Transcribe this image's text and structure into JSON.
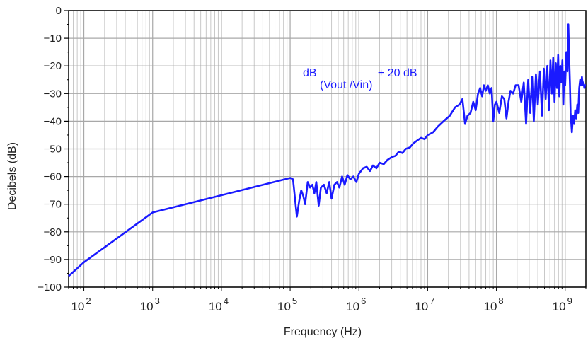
{
  "chart_data": {
    "type": "line",
    "xlabel": "Frequency (Hz)",
    "ylabel": "Decibels (dB)",
    "x_scale": "log",
    "xlim": [
      60,
      2000000000
    ],
    "ylim": [
      -100,
      0
    ],
    "grid": true,
    "x_ticks": [
      {
        "value": 100,
        "base": "10",
        "exp": "2"
      },
      {
        "value": 1000,
        "base": "10",
        "exp": "3"
      },
      {
        "value": 10000,
        "base": "10",
        "exp": "4"
      },
      {
        "value": 100000,
        "base": "10",
        "exp": "5"
      },
      {
        "value": 1000000,
        "base": "10",
        "exp": "6"
      },
      {
        "value": 10000000,
        "base": "10",
        "exp": "7"
      },
      {
        "value": 100000000,
        "base": "10",
        "exp": "8"
      },
      {
        "value": 1000000000,
        "base": "10",
        "exp": "9"
      }
    ],
    "y_ticks": [
      {
        "value": 0,
        "label": "0"
      },
      {
        "value": -10,
        "label": "−10"
      },
      {
        "value": -20,
        "label": "−20"
      },
      {
        "value": -30,
        "label": "−30"
      },
      {
        "value": -40,
        "label": "−40"
      },
      {
        "value": -50,
        "label": "−50"
      },
      {
        "value": -60,
        "label": "−60"
      },
      {
        "value": -70,
        "label": "−70"
      },
      {
        "value": -80,
        "label": "−80"
      },
      {
        "value": -90,
        "label": "−90"
      },
      {
        "value": -100,
        "label": "−100"
      }
    ],
    "annotation": {
      "main": "dB",
      "subscript": "(Vout /Vin)",
      "suffix": "+ 20 dB"
    },
    "series": [
      {
        "color": "#1a1aff",
        "points": [
          [
            60,
            -96
          ],
          [
            100,
            -91
          ],
          [
            1000,
            -73
          ],
          [
            100000,
            -60.5
          ],
          [
            110000,
            -61
          ],
          [
            125000,
            -74.5
          ],
          [
            135000,
            -69
          ],
          [
            145000,
            -65
          ],
          [
            155000,
            -67
          ],
          [
            165000,
            -70
          ],
          [
            180000,
            -62
          ],
          [
            195000,
            -64
          ],
          [
            210000,
            -63
          ],
          [
            225000,
            -66
          ],
          [
            240000,
            -62
          ],
          [
            260000,
            -70.5
          ],
          [
            280000,
            -64
          ],
          [
            310000,
            -63
          ],
          [
            340000,
            -66
          ],
          [
            370000,
            -62
          ],
          [
            400000,
            -68
          ],
          [
            440000,
            -63
          ],
          [
            480000,
            -62
          ],
          [
            520000,
            -64
          ],
          [
            570000,
            -60
          ],
          [
            620000,
            -63
          ],
          [
            680000,
            -59.5
          ],
          [
            750000,
            -61
          ],
          [
            830000,
            -60
          ],
          [
            920000,
            -62
          ],
          [
            1000000,
            -59
          ],
          [
            1150000,
            -57
          ],
          [
            1300000,
            -56.5
          ],
          [
            1450000,
            -58
          ],
          [
            1600000,
            -56
          ],
          [
            1800000,
            -57
          ],
          [
            2000000,
            -55
          ],
          [
            2300000,
            -55.5
          ],
          [
            2600000,
            -54
          ],
          [
            3000000,
            -53
          ],
          [
            3400000,
            -52.5
          ],
          [
            3800000,
            -51
          ],
          [
            4300000,
            -51.5
          ],
          [
            4800000,
            -50
          ],
          [
            5500000,
            -49.5
          ],
          [
            6200000,
            -48
          ],
          [
            7000000,
            -47
          ],
          [
            8000000,
            -46
          ],
          [
            9000000,
            -46.5
          ],
          [
            10000000,
            -45
          ],
          [
            12000000,
            -44
          ],
          [
            14000000,
            -42
          ],
          [
            17000000,
            -40
          ],
          [
            21000000,
            -38
          ],
          [
            25000000,
            -35
          ],
          [
            29000000,
            -34
          ],
          [
            32000000,
            -32
          ],
          [
            35000000,
            -41
          ],
          [
            38000000,
            -38
          ],
          [
            42000000,
            -37
          ],
          [
            46000000,
            -33
          ],
          [
            50000000,
            -36
          ],
          [
            54000000,
            -30
          ],
          [
            58000000,
            -28
          ],
          [
            62000000,
            -31
          ],
          [
            66000000,
            -27
          ],
          [
            70000000,
            -29
          ],
          [
            75000000,
            -27
          ],
          [
            80000000,
            -30
          ],
          [
            85000000,
            -28
          ],
          [
            90000000,
            -40
          ],
          [
            95000000,
            -34
          ],
          [
            100000000,
            -33
          ],
          [
            110000000,
            -37
          ],
          [
            120000000,
            -31
          ],
          [
            130000000,
            -32
          ],
          [
            140000000,
            -39
          ],
          [
            150000000,
            -33
          ],
          [
            160000000,
            -29
          ],
          [
            175000000,
            -30
          ],
          [
            190000000,
            -27
          ],
          [
            210000000,
            -27
          ],
          [
            230000000,
            -33
          ],
          [
            250000000,
            -26
          ],
          [
            270000000,
            -41
          ],
          [
            290000000,
            -25
          ],
          [
            310000000,
            -37
          ],
          [
            330000000,
            -24
          ],
          [
            350000000,
            -40
          ],
          [
            375000000,
            -23
          ],
          [
            400000000,
            -34
          ],
          [
            430000000,
            -22
          ],
          [
            460000000,
            -38
          ],
          [
            490000000,
            -21
          ],
          [
            520000000,
            -32
          ],
          [
            550000000,
            -20
          ],
          [
            580000000,
            -36
          ],
          [
            610000000,
            -18
          ],
          [
            640000000,
            -30
          ],
          [
            670000000,
            -17
          ],
          [
            700000000,
            -33
          ],
          [
            730000000,
            -19
          ],
          [
            760000000,
            -28
          ],
          [
            790000000,
            -16
          ],
          [
            820000000,
            -31
          ],
          [
            850000000,
            -20
          ],
          [
            880000000,
            -26
          ],
          [
            910000000,
            -18
          ],
          [
            940000000,
            -34
          ],
          [
            970000000,
            -22
          ],
          [
            1000000000,
            -27
          ],
          [
            1040000000,
            -15
          ],
          [
            1080000000,
            -22
          ],
          [
            1110000000,
            -5
          ],
          [
            1140000000,
            -16
          ],
          [
            1170000000,
            -26
          ],
          [
            1200000000,
            -37
          ],
          [
            1250000000,
            -44
          ],
          [
            1300000000,
            -38
          ],
          [
            1350000000,
            -41
          ],
          [
            1400000000,
            -36
          ],
          [
            1450000000,
            -39
          ],
          [
            1500000000,
            -34
          ],
          [
            1550000000,
            -37
          ],
          [
            1600000000,
            -28
          ],
          [
            1650000000,
            -25
          ],
          [
            1700000000,
            -27
          ],
          [
            1750000000,
            -24
          ],
          [
            1800000000,
            -27
          ],
          [
            1850000000,
            -26
          ],
          [
            1900000000,
            -28
          ],
          [
            1950000000,
            -27
          ],
          [
            2000000000,
            -27
          ]
        ]
      }
    ]
  }
}
